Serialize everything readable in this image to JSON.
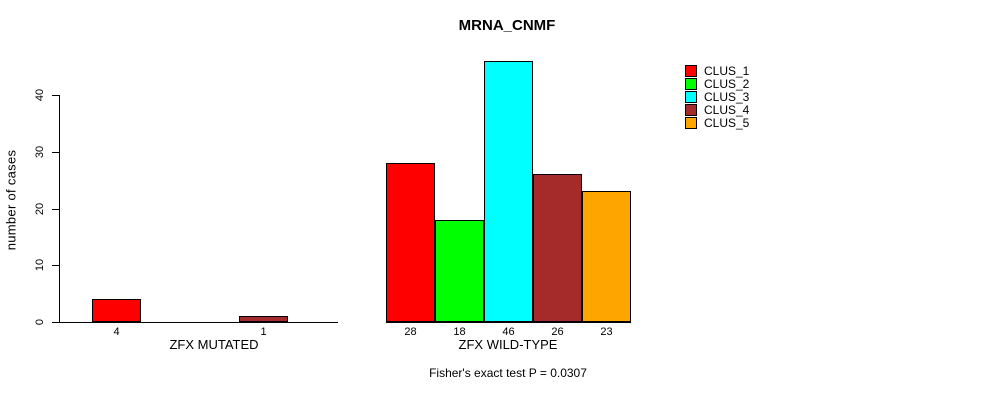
{
  "title": "MRNA_CNMF",
  "footer": "Fisher's exact test P = 0.0307",
  "chart_data": {
    "type": "bar",
    "title": "MRNA_CNMF",
    "xlabel": "",
    "ylabel": "number of cases",
    "ylim": [
      0,
      46
    ],
    "yticks": [
      0,
      10,
      20,
      30,
      40
    ],
    "grid": false,
    "legend_position": "right",
    "bar_value_labels_shown": true,
    "series": [
      {
        "name": "CLUS_1",
        "color": "#FF0000"
      },
      {
        "name": "CLUS_2",
        "color": "#00FF00"
      },
      {
        "name": "CLUS_3",
        "color": "#00FFFF"
      },
      {
        "name": "CLUS_4",
        "color": "#A52A2A"
      },
      {
        "name": "CLUS_5",
        "color": "#FFA500"
      }
    ],
    "groups": [
      {
        "label": "ZFX MUTATED",
        "values": [
          4,
          0,
          0,
          1,
          0
        ]
      },
      {
        "label": "ZFX WILD-TYPE",
        "values": [
          28,
          18,
          46,
          26,
          23
        ]
      }
    ],
    "annotation": "Fisher's exact test P = 0.0307"
  }
}
